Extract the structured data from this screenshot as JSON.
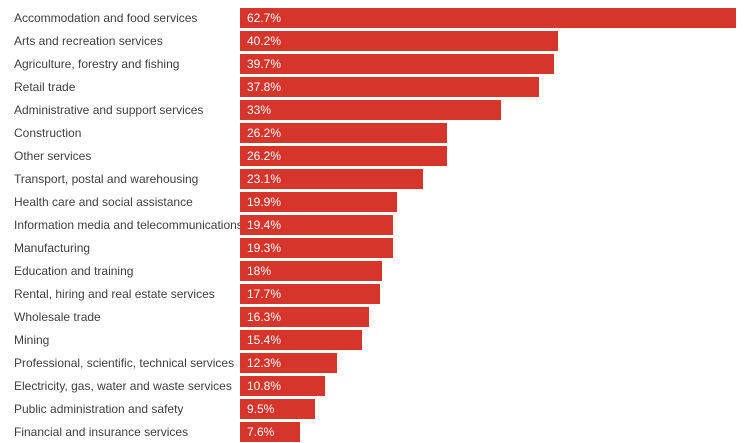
{
  "chart_data": {
    "type": "bar",
    "orientation": "horizontal",
    "title": "",
    "xlabel": "",
    "ylabel": "",
    "xlim": [
      0,
      65
    ],
    "grid": false,
    "legend": false,
    "bar_color": "#d5352b",
    "value_label_color": "#ffffff",
    "category_label_color": "#3f3f3f",
    "categories": [
      "Accommodation and food services",
      "Arts and recreation services",
      "Agriculture, forestry and fishing",
      "Retail trade",
      "Administrative and support services",
      "Construction",
      "Other services",
      "Transport, postal and warehousing",
      "Health care and social assistance",
      "Information media and telecommunications",
      "Manufacturing",
      "Education and training",
      "Rental, hiring and real estate services",
      "Wholesale trade",
      "Mining",
      "Professional, scientific, technical services",
      "Electricity, gas, water and waste services",
      "Public administration and safety",
      "Financial and insurance services"
    ],
    "values": [
      62.7,
      40.2,
      39.7,
      37.8,
      33,
      26.2,
      26.2,
      23.1,
      19.9,
      19.4,
      19.3,
      18,
      17.7,
      16.3,
      15.4,
      12.3,
      10.8,
      9.5,
      7.6
    ],
    "value_labels": [
      "62.7%",
      "40.2%",
      "39.7%",
      "37.8%",
      "33%",
      "26.2%",
      "26.2%",
      "23.1%",
      "19.9%",
      "19.4%",
      "19.3%",
      "18%",
      "17.7%",
      "16.3%",
      "15.4%",
      "12.3%",
      "10.8%",
      "9.5%",
      "7.6%"
    ]
  }
}
